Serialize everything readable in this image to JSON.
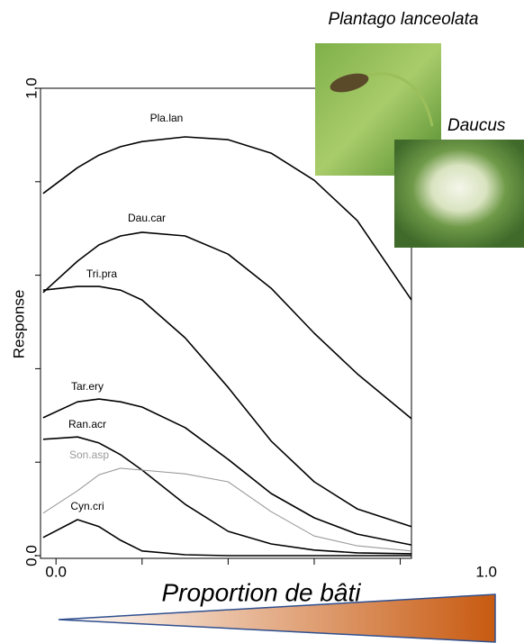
{
  "chart_data": {
    "type": "line",
    "xlabel": "Proportion de bâti",
    "ylabel": "Response",
    "annotations": [
      "Plantago lanceolata",
      "Daucus"
    ],
    "x": [
      -0.03,
      0.05,
      0.1,
      0.15,
      0.2,
      0.3,
      0.4,
      0.5,
      0.6,
      0.7,
      0.826
    ],
    "series": [
      {
        "name": "Pla.lan",
        "color": "#000000",
        "values": [
          0.775,
          0.83,
          0.857,
          0.875,
          0.886,
          0.896,
          0.89,
          0.861,
          0.803,
          0.717,
          0.547
        ]
      },
      {
        "name": "Dau.car",
        "color": "#000000",
        "values": [
          0.563,
          0.63,
          0.665,
          0.684,
          0.692,
          0.684,
          0.645,
          0.572,
          0.476,
          0.389,
          0.293
        ]
      },
      {
        "name": "Tri.pra",
        "color": "#000000",
        "values": [
          0.568,
          0.576,
          0.576,
          0.568,
          0.547,
          0.466,
          0.36,
          0.245,
          0.158,
          0.1,
          0.062
        ]
      },
      {
        "name": "Tar.ery",
        "color": "#000000",
        "values": [
          0.295,
          0.329,
          0.335,
          0.329,
          0.318,
          0.274,
          0.206,
          0.133,
          0.081,
          0.046,
          0.023
        ]
      },
      {
        "name": "Ran.acr",
        "color": "#000000",
        "values": [
          0.249,
          0.254,
          0.241,
          0.216,
          0.183,
          0.11,
          0.052,
          0.025,
          0.012,
          0.006,
          0.004
        ]
      },
      {
        "name": "Son.asp",
        "color": "#9a9a9a",
        "values": [
          0.091,
          0.139,
          0.173,
          0.187,
          0.183,
          0.175,
          0.158,
          0.094,
          0.042,
          0.021,
          0.01
        ]
      },
      {
        "name": "Cyn.cri",
        "color": "#000000",
        "values": [
          0.039,
          0.077,
          0.062,
          0.033,
          0.01,
          0.002,
          0,
          0,
          0,
          0,
          0
        ]
      }
    ],
    "xlim": [
      -0.036,
      0.826
    ],
    "ylim": [
      0,
      1
    ],
    "xticks": [
      {
        "value": 0,
        "label": "0.0"
      },
      0.2,
      0.4,
      0.6,
      0.8,
      {
        "value": 1,
        "label": "1.0"
      }
    ],
    "yticks": [
      {
        "value": 0,
        "label": "0.0"
      },
      0.2,
      0.4,
      0.6,
      0.8,
      {
        "value": 1,
        "label": "1.0"
      }
    ]
  }
}
